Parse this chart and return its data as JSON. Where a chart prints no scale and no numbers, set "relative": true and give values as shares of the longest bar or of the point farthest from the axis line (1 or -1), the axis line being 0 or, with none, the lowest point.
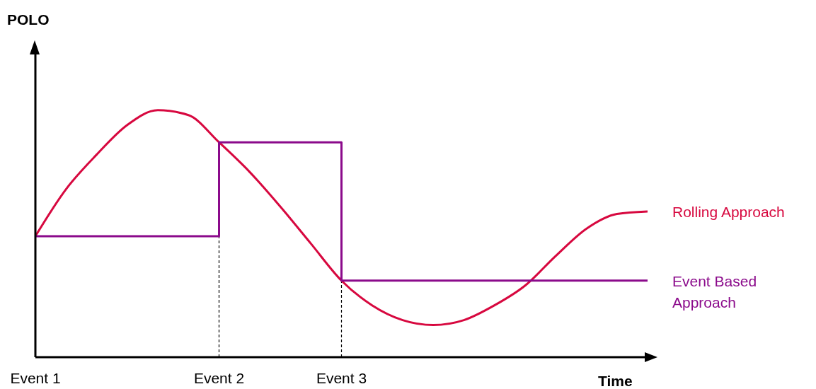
{
  "chart_data": {
    "type": "line",
    "relative": true,
    "annotations": [
      "POLO"
    ],
    "xlabel": "Time",
    "categories": [
      "Event 1",
      null,
      null,
      null,
      null,
      null,
      "Event 2",
      null,
      null,
      null,
      "Event 3",
      null,
      null,
      null,
      null,
      null,
      null,
      null,
      null,
      null,
      null
    ],
    "legend": false,
    "series": [
      {
        "name": "Rolling Approach",
        "color": "#d7083f",
        "values": [
          0.49,
          0.68,
          0.82,
          0.94,
          1,
          0.98,
          0.87,
          0.75,
          0.61,
          0.46,
          0.31,
          0.21,
          0.15,
          0.13,
          0.15,
          0.21,
          0.29,
          0.41,
          0.52,
          0.58,
          0.59
        ]
      },
      {
        "name": "Event Based Approach",
        "color": "#8b0a8b",
        "type": "step",
        "values": [
          0.49,
          0.49,
          0.49,
          0.49,
          0.49,
          0.49,
          0.87,
          0.87,
          0.87,
          0.87,
          0.31,
          0.31,
          0.31,
          0.31,
          0.31,
          0.31,
          0.31,
          0.31,
          0.31,
          0.31,
          0.31
        ]
      }
    ],
    "ref_lines": [
      {
        "axis": "x",
        "value": "Event 2",
        "line_style": "dashed",
        "color": "#000000"
      },
      {
        "axis": "x",
        "value": "Event 3",
        "line_style": "dashed",
        "color": "#000000"
      }
    ]
  }
}
